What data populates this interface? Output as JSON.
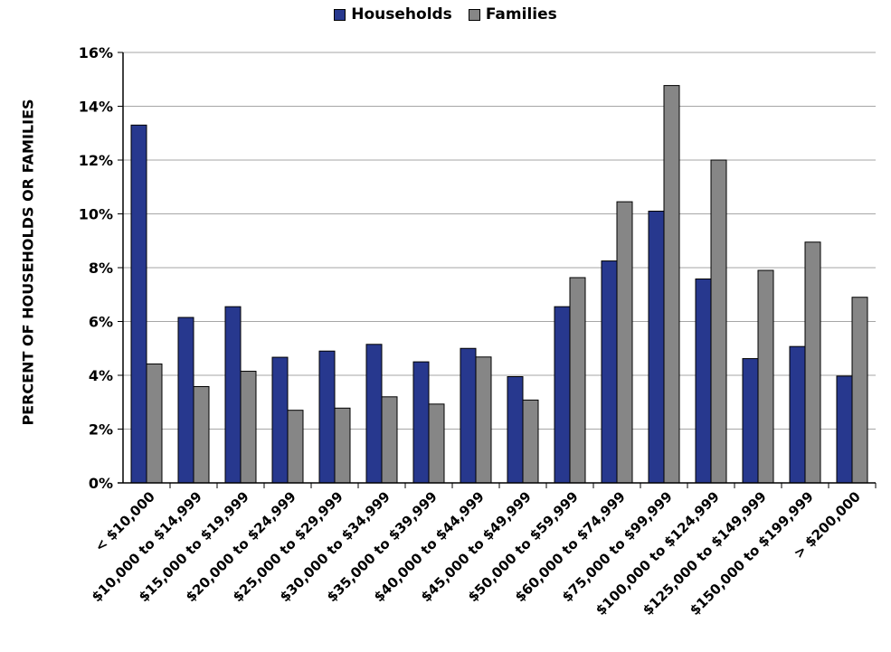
{
  "chart_data": {
    "type": "bar",
    "title": "",
    "xlabel": "",
    "ylabel": "PERCENT OF HOUSEHOLDS OR FAMILIES",
    "ylim": [
      0,
      16
    ],
    "yticks": [
      "0%",
      "2%",
      "4%",
      "6%",
      "8%",
      "10%",
      "12%",
      "14%",
      "16%"
    ],
    "grid": true,
    "legend_position": "top-center",
    "categories": [
      "< $10,000",
      "$10,000 to $14,999",
      "$15,000 to $19,999",
      "$20,000 to $24,999",
      "$25,000 to $29,999",
      "$30,000 to $34,999",
      "$35,000 to $39,999",
      "$40,000 to $44,999",
      "$45,000 to $49,999",
      "$50,000 to $59,999",
      "$60,000 to $74,999",
      "$75,000 to $99,999",
      "$100,000 to $124,999",
      "$125,000 to $149,999",
      "$150,000 to $199,999",
      "> $200,000"
    ],
    "series": [
      {
        "name": "Households",
        "color": "#27388e",
        "values": [
          13.3,
          6.15,
          6.55,
          4.67,
          4.9,
          5.15,
          4.5,
          5.0,
          3.95,
          6.55,
          8.25,
          10.1,
          7.58,
          4.62,
          5.07,
          3.97
        ]
      },
      {
        "name": "Families",
        "color": "#868686",
        "values": [
          4.42,
          3.58,
          4.15,
          2.7,
          2.78,
          3.2,
          2.93,
          4.68,
          3.08,
          7.63,
          10.45,
          14.77,
          12.0,
          7.9,
          8.95,
          6.9
        ]
      }
    ]
  }
}
